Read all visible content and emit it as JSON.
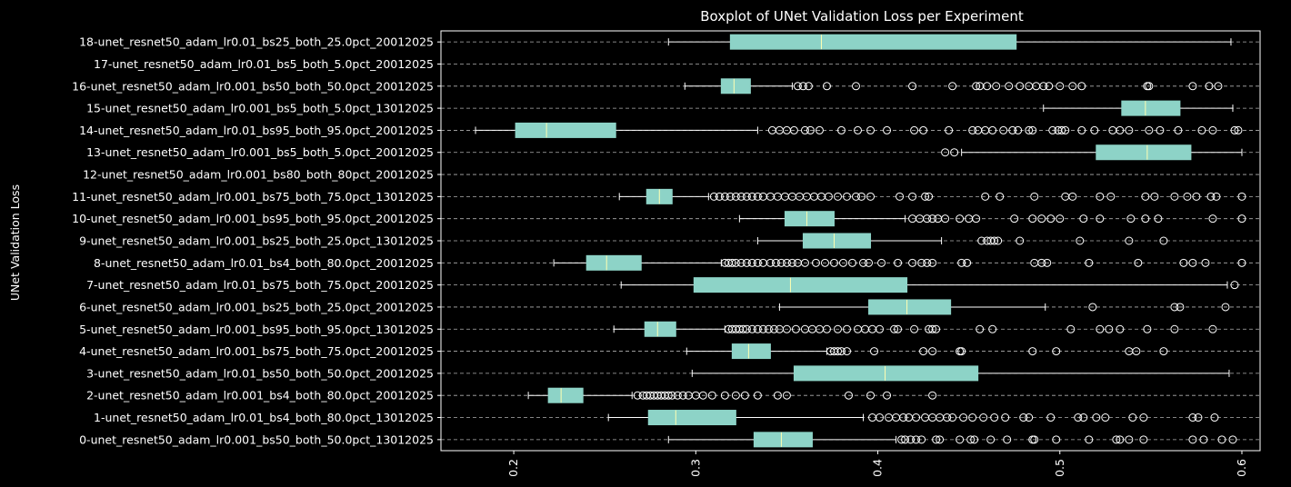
{
  "chart_data": {
    "type": "boxplot",
    "orientation": "horizontal",
    "title": "Boxplot of UNet Validation Loss per Experiment",
    "xlabel": "",
    "ylabel": "UNet Validation Loss",
    "xlim": [
      0.16,
      0.61
    ],
    "xticks": [
      0.2,
      0.3,
      0.4,
      0.5,
      0.6
    ],
    "xtick_labels": [
      "0.2",
      "0.3",
      "0.4",
      "0.5",
      "0.6"
    ],
    "xtick_rotation": 90,
    "grid": "y-dashed",
    "colors": {
      "background": "#000000",
      "box_fill": "#8dd3c7",
      "median": "#ffffb3",
      "lines": "#ffffff",
      "grid": "#b0b0b0"
    },
    "categories": [
      "0-unet_resnet50_adam_lr0.001_bs50_both_50.0pct_13012025",
      "1-unet_resnet50_adam_lr0.01_bs4_both_80.0pct_13012025",
      "2-unet_resnet50_adam_lr0.001_bs4_both_80.0pct_20012025",
      "3-unet_resnet50_adam_lr0.01_bs50_both_50.0pct_20012025",
      "4-unet_resnet50_adam_lr0.001_bs75_both_75.0pct_20012025",
      "5-unet_resnet50_adam_lr0.001_bs95_both_95.0pct_13012025",
      "6-unet_resnet50_adam_lr0.001_bs25_both_25.0pct_20012025",
      "7-unet_resnet50_adam_lr0.01_bs75_both_75.0pct_20012025",
      "8-unet_resnet50_adam_lr0.01_bs4_both_80.0pct_20012025",
      "9-unet_resnet50_adam_lr0.001_bs25_both_25.0pct_13012025",
      "10-unet_resnet50_adam_lr0.001_bs95_both_95.0pct_20012025",
      "11-unet_resnet50_adam_lr0.001_bs75_both_75.0pct_13012025",
      "12-unet_resnet50_adam_lr0.001_bs80_both_80pct_20012025",
      "13-unet_resnet50_adam_lr0.001_bs5_both_5.0pct_20012025",
      "14-unet_resnet50_adam_lr0.01_bs95_both_95.0pct_20012025",
      "15-unet_resnet50_adam_lr0.001_bs5_both_5.0pct_13012025",
      "16-unet_resnet50_adam_lr0.001_bs50_both_50.0pct_20012025",
      "17-unet_resnet50_adam_lr0.01_bs5_both_5.0pct_20012025",
      "18-unet_resnet50_adam_lr0.01_bs25_both_25.0pct_20012025"
    ],
    "boxes": [
      {
        "whislo": 0.285,
        "q1": 0.332,
        "med": 0.347,
        "q3": 0.364,
        "whishi": 0.41,
        "fliers": [
          0.413,
          0.415,
          0.418,
          0.421,
          0.424,
          0.432,
          0.434,
          0.445,
          0.451,
          0.453,
          0.462,
          0.471,
          0.485,
          0.486,
          0.498,
          0.516,
          0.531,
          0.533,
          0.538,
          0.546,
          0.573,
          0.579,
          0.589,
          0.595
        ]
      },
      {
        "whislo": 0.252,
        "q1": 0.274,
        "med": 0.289,
        "q3": 0.322,
        "whishi": 0.392,
        "fliers": [
          0.397,
          0.401,
          0.406,
          0.41,
          0.414,
          0.417,
          0.421,
          0.426,
          0.43,
          0.434,
          0.438,
          0.441,
          0.447,
          0.452,
          0.458,
          0.464,
          0.47,
          0.48,
          0.483,
          0.495,
          0.51,
          0.513,
          0.52,
          0.525,
          0.54,
          0.546,
          0.573,
          0.576,
          0.585
        ]
      },
      {
        "whislo": 0.208,
        "q1": 0.219,
        "med": 0.226,
        "q3": 0.238,
        "whishi": 0.265,
        "fliers": [
          0.268,
          0.271,
          0.273,
          0.275,
          0.277,
          0.279,
          0.281,
          0.283,
          0.285,
          0.287,
          0.29,
          0.293,
          0.296,
          0.3,
          0.304,
          0.309,
          0.316,
          0.322,
          0.327,
          0.334,
          0.345,
          0.35,
          0.384,
          0.396,
          0.405,
          0.43
        ]
      },
      {
        "whislo": 0.298,
        "q1": 0.354,
        "med": 0.404,
        "q3": 0.455,
        "whishi": 0.593,
        "fliers": []
      },
      {
        "whislo": 0.295,
        "q1": 0.32,
        "med": 0.329,
        "q3": 0.341,
        "whishi": 0.372,
        "fliers": [
          0.374,
          0.376,
          0.378,
          0.38,
          0.383,
          0.398,
          0.425,
          0.43,
          0.445,
          0.446,
          0.485,
          0.498,
          0.538,
          0.542,
          0.557
        ]
      },
      {
        "whislo": 0.255,
        "q1": 0.272,
        "med": 0.279,
        "q3": 0.289,
        "whishi": 0.316,
        "fliers": [
          0.318,
          0.32,
          0.322,
          0.324,
          0.326,
          0.328,
          0.331,
          0.334,
          0.337,
          0.34,
          0.343,
          0.346,
          0.35,
          0.355,
          0.36,
          0.364,
          0.368,
          0.372,
          0.378,
          0.383,
          0.389,
          0.393,
          0.397,
          0.401,
          0.409,
          0.411,
          0.42,
          0.428,
          0.43,
          0.432,
          0.456,
          0.463,
          0.506,
          0.522,
          0.527,
          0.533,
          0.548,
          0.563,
          0.584
        ]
      },
      {
        "whislo": 0.346,
        "q1": 0.395,
        "med": 0.416,
        "q3": 0.44,
        "whishi": 0.492,
        "fliers": [
          0.518,
          0.563,
          0.566,
          0.591
        ]
      },
      {
        "whislo": 0.259,
        "q1": 0.299,
        "med": 0.352,
        "q3": 0.416,
        "whishi": 0.592,
        "fliers": [
          0.596
        ]
      },
      {
        "whislo": 0.222,
        "q1": 0.24,
        "med": 0.251,
        "q3": 0.27,
        "whishi": 0.314,
        "fliers": [
          0.316,
          0.318,
          0.32,
          0.322,
          0.325,
          0.328,
          0.331,
          0.334,
          0.337,
          0.341,
          0.344,
          0.347,
          0.35,
          0.353,
          0.356,
          0.36,
          0.366,
          0.371,
          0.376,
          0.381,
          0.386,
          0.392,
          0.395,
          0.402,
          0.411,
          0.419,
          0.424,
          0.427,
          0.43,
          0.446,
          0.449,
          0.486,
          0.49,
          0.493,
          0.516,
          0.543,
          0.568,
          0.573,
          0.58,
          0.6
        ]
      },
      {
        "whislo": 0.334,
        "q1": 0.359,
        "med": 0.376,
        "q3": 0.396,
        "whishi": 0.435,
        "fliers": [
          0.457,
          0.46,
          0.462,
          0.464,
          0.466,
          0.478,
          0.511,
          0.538,
          0.557
        ]
      },
      {
        "whislo": 0.324,
        "q1": 0.349,
        "med": 0.361,
        "q3": 0.376,
        "whishi": 0.415,
        "fliers": [
          0.419,
          0.423,
          0.427,
          0.43,
          0.433,
          0.437,
          0.445,
          0.45,
          0.454,
          0.475,
          0.485,
          0.49,
          0.495,
          0.5,
          0.513,
          0.522,
          0.539,
          0.547,
          0.554,
          0.584,
          0.6
        ]
      },
      {
        "whislo": 0.258,
        "q1": 0.273,
        "med": 0.28,
        "q3": 0.287,
        "whishi": 0.307,
        "fliers": [
          0.31,
          0.313,
          0.316,
          0.319,
          0.322,
          0.325,
          0.328,
          0.331,
          0.334,
          0.337,
          0.341,
          0.345,
          0.349,
          0.353,
          0.357,
          0.361,
          0.365,
          0.369,
          0.373,
          0.378,
          0.383,
          0.388,
          0.391,
          0.396,
          0.412,
          0.419,
          0.426,
          0.428,
          0.459,
          0.467,
          0.486,
          0.503,
          0.507,
          0.522,
          0.528,
          0.547,
          0.552,
          0.563,
          0.57,
          0.575,
          0.583,
          0.586,
          0.6
        ]
      },
      {
        "whislo": null,
        "q1": null,
        "med": null,
        "q3": null,
        "whishi": null,
        "fliers": []
      },
      {
        "whislo": 0.446,
        "q1": 0.52,
        "med": 0.548,
        "q3": 0.572,
        "whishi": 0.6,
        "fliers": [
          0.437,
          0.442
        ]
      },
      {
        "whislo": 0.179,
        "q1": 0.201,
        "med": 0.218,
        "q3": 0.256,
        "whishi": 0.334,
        "fliers": [
          0.342,
          0.346,
          0.35,
          0.354,
          0.36,
          0.363,
          0.368,
          0.38,
          0.389,
          0.396,
          0.405,
          0.42,
          0.425,
          0.439,
          0.452,
          0.455,
          0.459,
          0.463,
          0.469,
          0.474,
          0.477,
          0.483,
          0.485,
          0.496,
          0.499,
          0.501,
          0.503,
          0.512,
          0.519,
          0.529,
          0.533,
          0.538,
          0.549,
          0.555,
          0.565,
          0.578,
          0.584,
          0.596,
          0.598
        ]
      },
      {
        "whislo": 0.491,
        "q1": 0.534,
        "med": 0.547,
        "q3": 0.566,
        "whishi": 0.595,
        "fliers": []
      },
      {
        "whislo": 0.294,
        "q1": 0.314,
        "med": 0.321,
        "q3": 0.33,
        "whishi": 0.353,
        "fliers": [
          0.356,
          0.359,
          0.362,
          0.372,
          0.388,
          0.419,
          0.441,
          0.454,
          0.456,
          0.46,
          0.465,
          0.472,
          0.478,
          0.483,
          0.487,
          0.491,
          0.494,
          0.5,
          0.507,
          0.512,
          0.548,
          0.549,
          0.573,
          0.582,
          0.587
        ]
      },
      {
        "whislo": null,
        "q1": null,
        "med": null,
        "q3": null,
        "whishi": null,
        "fliers": []
      },
      {
        "whislo": 0.285,
        "q1": 0.319,
        "med": 0.369,
        "q3": 0.476,
        "whishi": 0.594,
        "fliers": []
      }
    ]
  }
}
